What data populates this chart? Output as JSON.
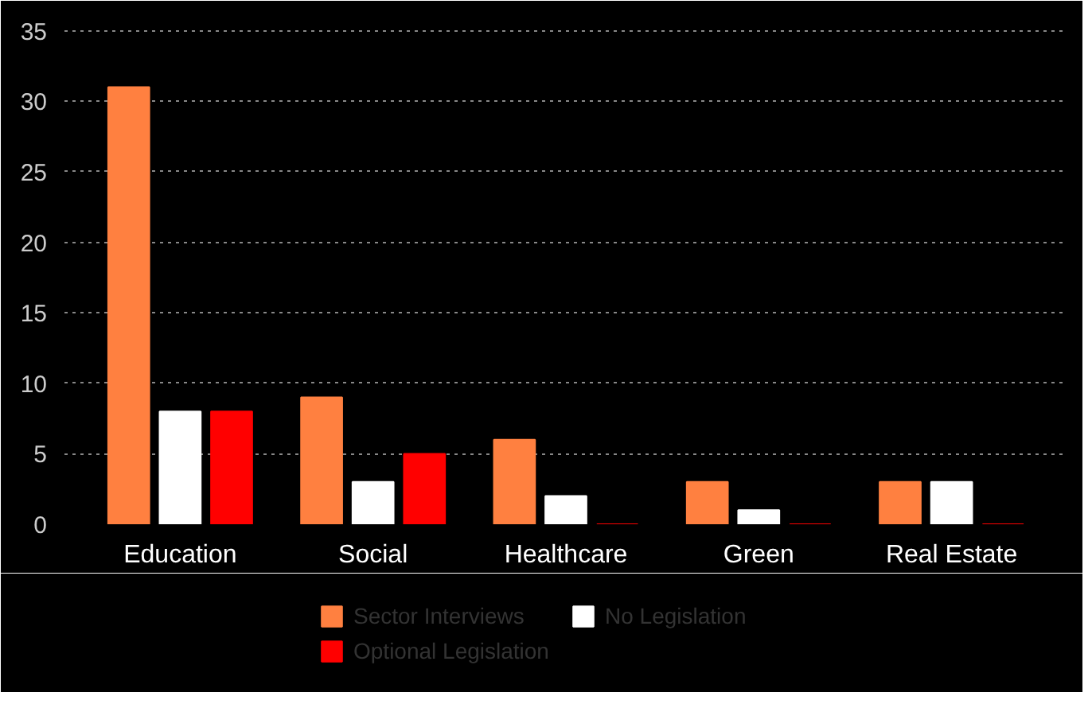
{
  "chart_data": {
    "type": "bar",
    "categories": [
      "Education",
      "Social",
      "Healthcare",
      "Green",
      "Real Estate"
    ],
    "series": [
      {
        "name": "Sector Interviews",
        "color": "#ff8040",
        "values": [
          31,
          9,
          6,
          3,
          3
        ]
      },
      {
        "name": "No Legislation",
        "color": "#ffffff",
        "values": [
          8,
          3,
          2,
          1,
          3
        ]
      },
      {
        "name": "Optional Legislation",
        "color": "#ff0000",
        "values": [
          8,
          5,
          0,
          0,
          0
        ]
      }
    ],
    "ylim": [
      0,
      36
    ],
    "yticks": [
      0,
      5,
      10,
      15,
      20,
      25,
      30,
      35
    ],
    "grid": "y",
    "legend": "bottom"
  }
}
